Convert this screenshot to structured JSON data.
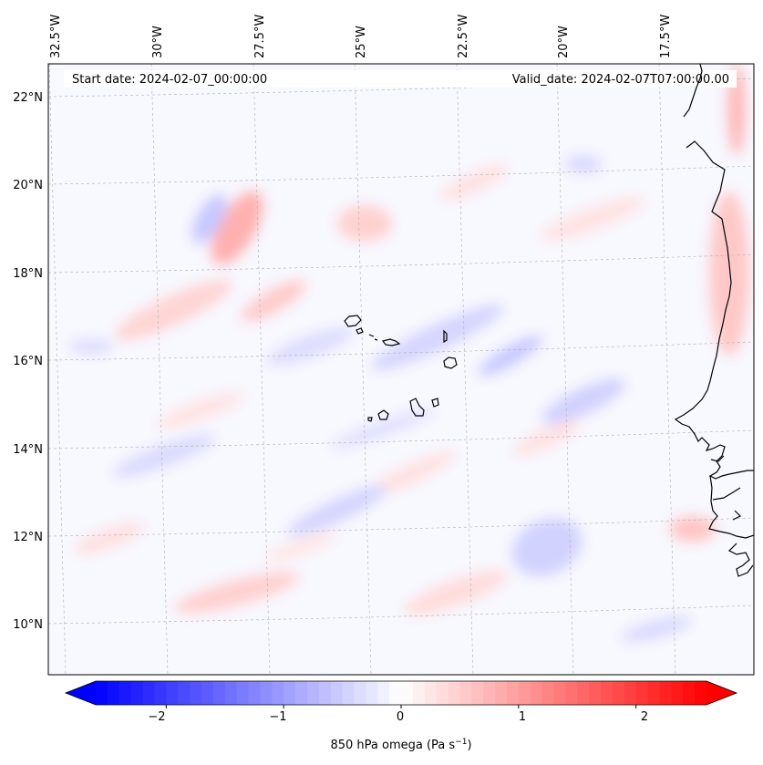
{
  "map": {
    "start_date_label": "Start date: 2024-02-07_00:00:00",
    "valid_date_label": "Valid_date: 2024-02-07T07:00:00.00",
    "longitude_labels": [
      "32.5°W",
      "30°W",
      "27.5°W",
      "25°W",
      "22.5°W",
      "20°W",
      "17.5°W"
    ],
    "latitude_labels": [
      "22°N",
      "20°N",
      "18°N",
      "16°N",
      "14°N",
      "12°N",
      "10°N"
    ],
    "field": "850 hPa omega",
    "colors": {
      "negative": "#0000ff",
      "neutral": "#ffffff",
      "positive": "#ff0000",
      "coastline": "#000000",
      "gridline": "#b0b0b0"
    }
  },
  "colorbar": {
    "label": "850 hPa omega (Pa s",
    "label_exponent": "−1",
    "label_close": ")",
    "ticks": [
      "−2",
      "−1",
      "0",
      "1",
      "2"
    ],
    "vmin": -2.6,
    "vmax": 2.6
  }
}
